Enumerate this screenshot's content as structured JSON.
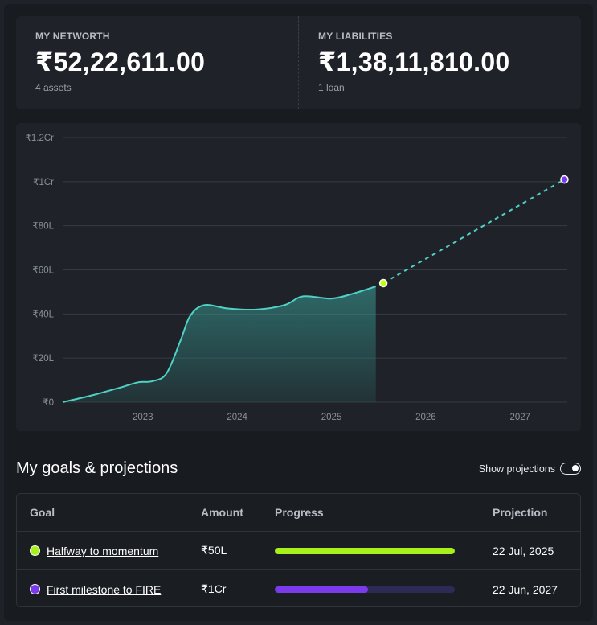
{
  "networth": {
    "label": "MY NETWORTH",
    "value": "₹52,22,611.00",
    "sub": "4 assets"
  },
  "liabilities": {
    "label": "MY LIABILITIES",
    "value": "₹1,38,11,810.00",
    "sub": "1 loan"
  },
  "chart_data": {
    "type": "area",
    "title": "",
    "xlabel": "",
    "ylabel": "",
    "y_ticks": [
      "₹0",
      "₹20L",
      "₹40L",
      "₹60L",
      "₹80L",
      "₹1Cr",
      "₹1.2Cr"
    ],
    "y_tick_values": [
      0,
      20,
      40,
      60,
      80,
      100,
      120
    ],
    "x_ticks": [
      "2023",
      "2024",
      "2025",
      "2026",
      "2027"
    ],
    "x_tick_values": [
      2023,
      2024,
      2025,
      2026,
      2027
    ],
    "xlim": [
      2022.15,
      2027.5
    ],
    "ylim": [
      0,
      120
    ],
    "grid": true,
    "series": [
      {
        "values": [
          {
            "x": 2022.15,
            "y": 0
          },
          {
            "x": 2022.45,
            "y": 3
          },
          {
            "x": 2022.75,
            "y": 6.5
          },
          {
            "x": 2022.95,
            "y": 9
          },
          {
            "x": 2023.1,
            "y": 9.5
          },
          {
            "x": 2023.25,
            "y": 13
          },
          {
            "x": 2023.4,
            "y": 28
          },
          {
            "x": 2023.5,
            "y": 39
          },
          {
            "x": 2023.65,
            "y": 44
          },
          {
            "x": 2023.9,
            "y": 42.5
          },
          {
            "x": 2024.2,
            "y": 42
          },
          {
            "x": 2024.5,
            "y": 44
          },
          {
            "x": 2024.7,
            "y": 48
          },
          {
            "x": 2025.0,
            "y": 47
          },
          {
            "x": 2025.25,
            "y": 49.5
          },
          {
            "x": 2025.47,
            "y": 52.5
          }
        ],
        "color": "#4fd1c5"
      },
      {
        "style": "dashed",
        "color": "#4fd1c5",
        "values": [
          {
            "x": 2025.55,
            "y": 54
          },
          {
            "x": 2027.47,
            "y": 101
          }
        ]
      }
    ],
    "markers": [
      {
        "x": 2025.55,
        "y": 54,
        "color": "#c4ff1a"
      },
      {
        "x": 2027.47,
        "y": 101,
        "color": "#7c3aed"
      }
    ]
  },
  "goals": {
    "title": "My goals & projections",
    "toggle_label": "Show projections",
    "toggle_on": true,
    "headers": {
      "goal": "Goal",
      "amount": "Amount",
      "progress": "Progress",
      "projection": "Projection"
    },
    "rows": [
      {
        "name": "Halfway to momentum",
        "amount": "₹50L",
        "progress": 1.0,
        "projection": "22 Jul, 2025",
        "color": "#a8f01a"
      },
      {
        "name": "First milestone to FIRE",
        "amount": "₹1Cr",
        "progress": 0.52,
        "projection": "22 Jun, 2027",
        "color": "#7c3aed"
      }
    ]
  }
}
